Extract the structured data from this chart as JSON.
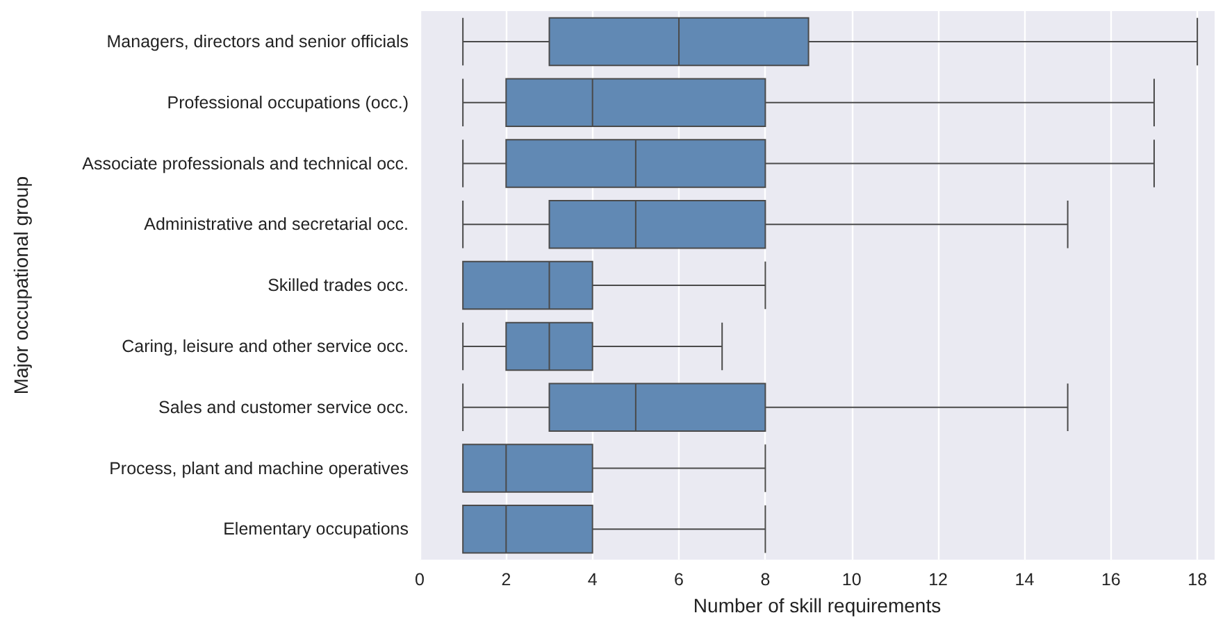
{
  "chart_data": {
    "type": "box",
    "orientation": "horizontal",
    "xlabel": "Number of skill requirements",
    "ylabel": "Major occupational group",
    "categories": [
      "Managers, directors and senior officials",
      "Professional occupations (occ.)",
      "Associate professionals and technical occ.",
      "Administrative and secretarial occ.",
      "Skilled trades occ.",
      "Caring, leisure and other service occ.",
      "Sales and customer service occ.",
      "Process, plant and machine operatives",
      "Elementary occupations"
    ],
    "series": [
      {
        "color": "#6189b4",
        "boxes": [
          {
            "low": 1,
            "q1": 3,
            "median": 6,
            "q3": 9,
            "high": 18
          },
          {
            "low": 1,
            "q1": 2,
            "median": 4,
            "q3": 8,
            "high": 17
          },
          {
            "low": 1,
            "q1": 2,
            "median": 5,
            "q3": 8,
            "high": 17
          },
          {
            "low": 1,
            "q1": 3,
            "median": 5,
            "q3": 8,
            "high": 15
          },
          {
            "low": 1,
            "q1": 1,
            "median": 3,
            "q3": 4,
            "high": 8
          },
          {
            "low": 1,
            "q1": 2,
            "median": 3,
            "q3": 4,
            "high": 7
          },
          {
            "low": 1,
            "q1": 3,
            "median": 5,
            "q3": 8,
            "high": 15
          },
          {
            "low": 1,
            "q1": 1,
            "median": 2,
            "q3": 4,
            "high": 8
          },
          {
            "low": 1,
            "q1": 1,
            "median": 2,
            "q3": 4,
            "high": 8
          }
        ]
      }
    ],
    "xlim": [
      0,
      18.4
    ],
    "xticks": [
      0,
      2,
      4,
      6,
      8,
      10,
      12,
      14,
      16,
      18
    ],
    "grid": "x"
  }
}
